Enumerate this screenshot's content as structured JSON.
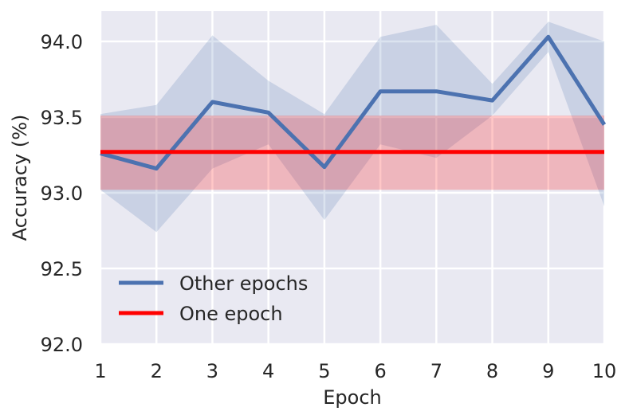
{
  "chart_data": {
    "type": "line",
    "title": "",
    "xlabel": "Epoch",
    "ylabel": "Accuracy (%)",
    "x": [
      1,
      2,
      3,
      4,
      5,
      6,
      7,
      8,
      9,
      10
    ],
    "xlim": [
      1,
      10
    ],
    "ylim": [
      92.0,
      94.2
    ],
    "xticks": [
      "1",
      "2",
      "3",
      "4",
      "5",
      "6",
      "7",
      "8",
      "9",
      "10"
    ],
    "yticks": [
      "92.0",
      "92.5",
      "93.0",
      "93.5",
      "94.0"
    ],
    "grid": true,
    "legend_position": "lower-left",
    "series": [
      {
        "name": "Other epochs",
        "color": "#4c72b0",
        "values": [
          93.26,
          93.16,
          93.6,
          93.53,
          93.17,
          93.67,
          93.67,
          93.61,
          94.03,
          93.45
        ],
        "band_upper": [
          93.52,
          93.58,
          94.04,
          93.74,
          93.52,
          94.03,
          94.11,
          93.72,
          94.13,
          94.0
        ],
        "band_lower": [
          93.02,
          92.74,
          93.16,
          93.32,
          92.82,
          93.32,
          93.23,
          93.51,
          93.93,
          92.91
        ],
        "band_color": "#4c72b0"
      },
      {
        "name": "One epoch",
        "color": "#ff0000",
        "values": [
          93.27,
          93.27,
          93.27,
          93.27,
          93.27,
          93.27,
          93.27,
          93.27,
          93.27,
          93.27
        ],
        "band_upper": [
          93.51,
          93.51,
          93.51,
          93.51,
          93.51,
          93.51,
          93.51,
          93.51,
          93.51,
          93.51
        ],
        "band_lower": [
          93.02,
          93.02,
          93.02,
          93.02,
          93.02,
          93.02,
          93.02,
          93.02,
          93.02,
          93.02
        ],
        "band_color": "#ff0000"
      }
    ]
  }
}
